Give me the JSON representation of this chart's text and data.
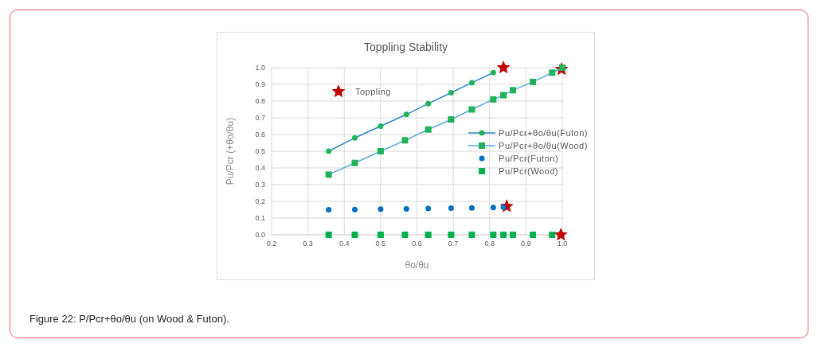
{
  "chart_data": {
    "type": "scatter",
    "title": "Toppling Stability",
    "xlabel": "θo/θu",
    "ylabel": "Pu/Pcr (+θo/θu)",
    "annotations": [
      "Figure 22: P/Pcr+θo/θu (on Wood & Futon)."
    ],
    "xlim": [
      0.2,
      1.0
    ],
    "xticks": [
      0.2,
      0.3,
      0.4,
      0.5,
      0.6,
      0.7,
      0.8,
      0.9,
      {
        "value": 1.0,
        "label": "1.0"
      }
    ],
    "ylim": [
      0,
      1.0
    ],
    "yticks": [
      {
        "value": 0,
        "label": "0.0"
      },
      0.1,
      0.2,
      0.3,
      0.4,
      0.5,
      0.6,
      0.7,
      0.8,
      0.9,
      {
        "value": 1.0,
        "label": "1.0"
      }
    ],
    "grid": true,
    "legend": "right",
    "series": [
      {
        "name": "Toppling",
        "marker": "star",
        "color": "#c00000",
        "x": [
          0.838,
          0.998,
          0.847,
          0.996
        ],
        "values": [
          1.0,
          0.99,
          0.17,
          0.0
        ]
      },
      {
        "name": "Pu/Pcr+θo/θu(Futon)",
        "type": "line",
        "marker": "circle",
        "color": "#2e86c8",
        "colors": [
          "#1fb25a",
          "#1fb25a",
          "#1fb25a",
          "#1fb25a",
          "#1fb25a",
          "#1fb25a",
          "#1fb25a",
          "#1fb25a"
        ],
        "x": [
          0.357,
          0.429,
          0.5,
          0.571,
          0.631,
          0.694,
          0.751,
          0.81
        ],
        "values": [
          0.5,
          0.58,
          0.65,
          0.72,
          0.785,
          0.85,
          0.91,
          0.97
        ]
      },
      {
        "name": "Pu/Pcr+θo/θu(Wood)",
        "type": "line",
        "marker": "square",
        "color": "#5aa8e0",
        "colors": [
          "#1fb25a",
          "#1fb25a",
          "#1fb25a",
          "#1fb25a",
          "#1fb25a",
          "#1fb25a",
          "#1fb25a",
          "#1fb25a",
          "#1fb25a",
          "#1fb25a",
          "#1fb25a",
          "#1fb25a",
          "#1fb25a"
        ],
        "x": [
          0.357,
          0.429,
          0.5,
          0.567,
          0.631,
          0.694,
          0.751,
          0.81,
          0.838,
          0.864,
          0.919,
          0.972,
          1.0
        ],
        "values": [
          0.36,
          0.43,
          0.5,
          0.565,
          0.63,
          0.69,
          0.75,
          0.81,
          0.835,
          0.865,
          0.915,
          0.97,
          1.0
        ]
      },
      {
        "name": "Pu/Pcr(Futon)",
        "marker": "circle",
        "color": "#0070c0",
        "x": [
          0.357,
          0.429,
          0.5,
          0.571,
          0.631,
          0.694,
          0.751,
          0.81,
          0.838
        ],
        "values": [
          0.15,
          0.151,
          0.153,
          0.155,
          0.157,
          0.159,
          0.161,
          0.163,
          0.165
        ]
      },
      {
        "name": "Pu/Pcr(Wood)",
        "marker": "square",
        "color": "#00b050",
        "x": [
          0.357,
          0.429,
          0.5,
          0.567,
          0.631,
          0.694,
          0.751,
          0.81,
          0.838,
          0.864,
          0.919,
          0.972
        ],
        "values": [
          0,
          0,
          0,
          0,
          0,
          0,
          0,
          0,
          0,
          0,
          0,
          0
        ]
      }
    ]
  }
}
